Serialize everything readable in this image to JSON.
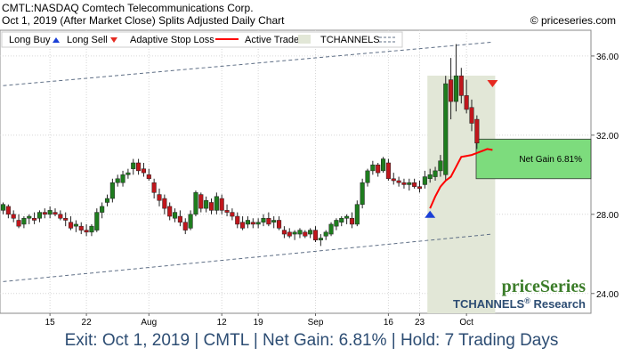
{
  "header": {
    "line1": "CMTL:NASDAQ Comtech Telecommunications Corp.",
    "line2": "Oct 1, 2019 (After Market Close)  Splits Adjusted Daily Chart",
    "copyright": "© priceseries.com"
  },
  "legend": {
    "long_buy": "Long Buy",
    "long_sell": "Long Sell",
    "adaptive_stop": "Adaptive Stop Loss",
    "active_trade": "Active Trade",
    "tchannels": "TCHANNELS"
  },
  "annotation": {
    "net_gain": "Net Gain 6.81%"
  },
  "brand": {
    "logo": "priceSeries",
    "research_prefix": "TCHANNELS",
    "research_suffix": " Research"
  },
  "footer": "Exit: Oct 1, 2019 | CMTL | Net Gain: 6.81% | Hold: 7 Trading Days",
  "colors": {
    "up": "#1e7d1e",
    "down": "#c0161c",
    "stop": "#ff0000",
    "buy_arrow": "#1a3fd6",
    "sell_arrow": "#e52a20",
    "active_zone": "#e2e7d7",
    "gain_box": "#7ddc7d",
    "channel": "#5f6f86",
    "footer_text": "#2d4d73",
    "logo_green": "#3c7d2a"
  },
  "chart_data": {
    "type": "candlestick",
    "y_range": [
      23,
      37.3
    ],
    "y_ticks": [
      "24.00",
      "28.00",
      "32.00",
      "36.00"
    ],
    "y_tick_values": [
      24,
      28,
      32,
      36
    ],
    "x_tick_labels": [
      "15",
      "22",
      "Aug",
      "12",
      "19",
      "Sep",
      "16",
      "23",
      "Oct"
    ],
    "x_tick_index": [
      9,
      16,
      28,
      42,
      49,
      60,
      74,
      80,
      89
    ],
    "grid": true,
    "candles": [
      [
        28.2,
        28.6,
        28.0,
        28.5
      ],
      [
        28.4,
        28.5,
        27.8,
        28.0
      ],
      [
        28.0,
        28.2,
        27.6,
        27.8
      ],
      [
        27.7,
        28.0,
        27.3,
        27.4
      ],
      [
        27.5,
        27.9,
        27.3,
        27.8
      ],
      [
        27.8,
        28.0,
        27.5,
        27.9
      ],
      [
        27.8,
        28.1,
        27.5,
        27.7
      ],
      [
        27.8,
        28.2,
        27.6,
        28.1
      ],
      [
        28.1,
        28.3,
        27.8,
        28.0
      ],
      [
        28.0,
        28.4,
        27.8,
        28.2
      ],
      [
        28.1,
        28.3,
        27.9,
        28.0
      ],
      [
        28.0,
        28.2,
        27.7,
        27.8
      ],
      [
        27.8,
        28.1,
        27.4,
        27.7
      ],
      [
        27.6,
        27.9,
        27.2,
        27.3
      ],
      [
        27.4,
        27.7,
        27.1,
        27.5
      ],
      [
        27.4,
        27.6,
        27.0,
        27.2
      ],
      [
        27.2,
        27.5,
        26.9,
        27.1
      ],
      [
        27.1,
        27.5,
        26.9,
        27.4
      ],
      [
        27.2,
        28.3,
        27.1,
        28.1
      ],
      [
        28.1,
        28.6,
        27.8,
        28.4
      ],
      [
        28.6,
        29.0,
        28.4,
        28.8
      ],
      [
        28.8,
        29.8,
        28.6,
        29.6
      ],
      [
        29.6,
        30.0,
        29.4,
        29.8
      ],
      [
        29.6,
        30.2,
        29.4,
        30.0
      ],
      [
        30.0,
        30.3,
        29.8,
        30.1
      ],
      [
        30.3,
        30.8,
        30.0,
        30.6
      ],
      [
        30.6,
        30.8,
        30.0,
        30.2
      ],
      [
        30.3,
        30.6,
        29.9,
        30.1
      ],
      [
        30.0,
        30.3,
        29.7,
        29.8
      ],
      [
        29.6,
        29.8,
        28.8,
        29.1
      ],
      [
        29.0,
        29.3,
        28.4,
        28.7
      ],
      [
        28.8,
        29.0,
        28.0,
        28.3
      ],
      [
        28.4,
        28.6,
        27.7,
        27.9
      ],
      [
        27.8,
        28.3,
        27.6,
        28.1
      ],
      [
        27.9,
        28.2,
        27.4,
        27.6
      ],
      [
        27.6,
        27.8,
        27.0,
        27.2
      ],
      [
        27.3,
        28.2,
        27.2,
        28.0
      ],
      [
        28.0,
        29.2,
        27.9,
        29.1
      ],
      [
        29.0,
        29.1,
        28.1,
        28.3
      ],
      [
        28.3,
        28.9,
        28.1,
        28.7
      ],
      [
        28.6,
        28.8,
        28.0,
        28.2
      ],
      [
        28.2,
        29.1,
        28.0,
        28.9
      ],
      [
        28.8,
        29.0,
        28.0,
        28.2
      ],
      [
        28.2,
        28.5,
        27.9,
        28.1
      ],
      [
        28.1,
        28.3,
        27.7,
        27.9
      ],
      [
        27.9,
        28.1,
        27.3,
        27.5
      ],
      [
        27.6,
        27.9,
        27.2,
        27.3
      ],
      [
        27.5,
        27.9,
        27.3,
        27.7
      ],
      [
        27.6,
        27.8,
        27.3,
        27.5
      ],
      [
        27.5,
        27.8,
        27.3,
        27.6
      ],
      [
        27.6,
        28.0,
        27.4,
        27.8
      ],
      [
        27.8,
        28.1,
        27.4,
        27.5
      ],
      [
        27.6,
        27.9,
        27.3,
        27.7
      ],
      [
        27.7,
        27.9,
        27.2,
        27.3
      ],
      [
        27.2,
        27.4,
        26.8,
        27.0
      ],
      [
        27.1,
        27.3,
        26.8,
        26.9
      ],
      [
        27.0,
        27.2,
        26.7,
        27.1
      ],
      [
        27.0,
        27.3,
        26.8,
        27.2
      ],
      [
        27.1,
        27.2,
        26.8,
        26.9
      ],
      [
        27.0,
        27.3,
        26.8,
        27.2
      ],
      [
        27.2,
        27.4,
        26.6,
        26.7
      ],
      [
        26.7,
        27.0,
        26.4,
        26.8
      ],
      [
        26.9,
        27.2,
        26.7,
        27.1
      ],
      [
        27.0,
        27.6,
        26.9,
        27.5
      ],
      [
        27.4,
        27.8,
        27.2,
        27.7
      ],
      [
        27.6,
        27.9,
        27.4,
        27.8
      ],
      [
        27.8,
        28.0,
        27.5,
        27.9
      ],
      [
        27.8,
        28.1,
        27.3,
        27.5
      ],
      [
        27.5,
        28.7,
        27.4,
        28.5
      ],
      [
        28.5,
        29.8,
        28.3,
        29.6
      ],
      [
        29.6,
        30.3,
        29.4,
        30.2
      ],
      [
        30.2,
        30.7,
        30.0,
        30.5
      ],
      [
        30.5,
        30.6,
        29.9,
        30.1
      ],
      [
        30.2,
        30.9,
        30.1,
        30.8
      ],
      [
        30.6,
        30.8,
        29.7,
        29.8
      ],
      [
        29.8,
        30.1,
        29.5,
        29.7
      ],
      [
        29.7,
        29.9,
        29.4,
        29.6
      ],
      [
        29.6,
        29.8,
        29.3,
        29.5
      ],
      [
        29.5,
        29.8,
        29.2,
        29.6
      ],
      [
        29.6,
        29.8,
        29.3,
        29.4
      ],
      [
        29.4,
        29.7,
        29.1,
        29.3
      ],
      [
        29.5,
        30.2,
        29.3,
        29.9
      ],
      [
        29.8,
        30.3,
        29.6,
        30.0
      ],
      [
        29.9,
        30.4,
        29.7,
        30.2
      ],
      [
        30.2,
        31.0,
        29.9,
        30.7
      ],
      [
        30.0,
        35.0,
        29.7,
        34.6
      ],
      [
        34.8,
        35.9,
        32.8,
        33.7
      ],
      [
        33.7,
        36.6,
        33.2,
        35.0
      ],
      [
        35.0,
        35.4,
        33.6,
        34.0
      ],
      [
        34.0,
        34.8,
        33.1,
        33.3
      ],
      [
        33.4,
        33.8,
        32.2,
        32.6
      ],
      [
        32.8,
        33.0,
        31.3,
        31.6
      ]
    ],
    "stop_line": [
      [
        82,
        28.3
      ],
      [
        83,
        28.9
      ],
      [
        84,
        29.4
      ],
      [
        85,
        29.7
      ],
      [
        86,
        29.9
      ],
      [
        87,
        30.4
      ],
      [
        88,
        30.9
      ],
      [
        89,
        30.95
      ],
      [
        90,
        31.0
      ],
      [
        91,
        31.1
      ],
      [
        92,
        31.2
      ],
      [
        93,
        31.3
      ],
      [
        94,
        31.25
      ]
    ],
    "active_range": [
      82,
      94
    ],
    "buy_signal": {
      "index": 82,
      "value": 28.0
    },
    "sell_signal": {
      "index": 94,
      "value": 34.6
    },
    "channel_upper": [
      [
        0,
        34.5
      ],
      [
        94,
        36.7
      ]
    ],
    "channel_lower": [
      [
        0,
        24.6
      ],
      [
        94,
        27.0
      ]
    ],
    "gain_box": [
      29.8,
      31.8
    ]
  }
}
